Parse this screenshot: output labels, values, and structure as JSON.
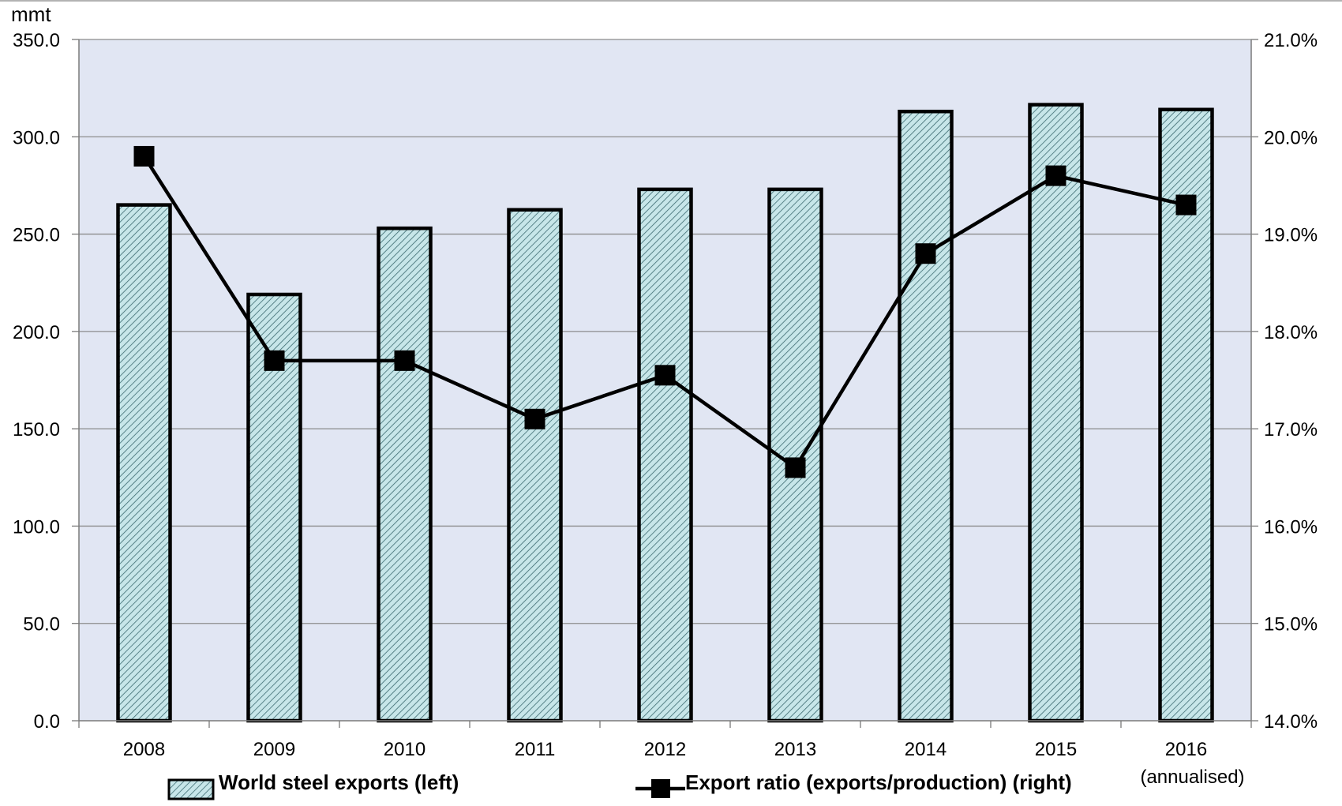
{
  "chart_data": {
    "type": "bar",
    "y_unit_label": "mmt",
    "categories": [
      "2008",
      "2009",
      "2010",
      "2011",
      "2012",
      "2013",
      "2014",
      "2015",
      "2016"
    ],
    "category_sublabels": [
      "",
      "",
      "",
      "",
      "",
      "",
      "",
      "",
      "(annualised)"
    ],
    "series": [
      {
        "name": "World steel exports (left)",
        "type": "bar",
        "axis": "left",
        "values": [
          265.0,
          219.0,
          253.0,
          262.5,
          273.0,
          273.0,
          313.0,
          316.5,
          314.0
        ],
        "color": "#bfe3e6",
        "pattern": "diagonal-hatch"
      },
      {
        "name": "Export ratio (exports/production) (right)",
        "type": "line",
        "axis": "right",
        "values": [
          19.8,
          17.7,
          17.7,
          17.1,
          17.55,
          16.6,
          18.8,
          19.6,
          19.3
        ],
        "unit": "%",
        "color": "#000000",
        "marker": "square"
      }
    ],
    "y_left": {
      "min": 0,
      "max": 350,
      "step": 50,
      "ticks": [
        "0.0",
        "50.0",
        "100.0",
        "150.0",
        "200.0",
        "250.0",
        "300.0",
        "350.0"
      ]
    },
    "y_right": {
      "min": 14,
      "max": 21,
      "step": 1,
      "ticks": [
        "14.0%",
        "15.0%",
        "16.0%",
        "17.0%",
        "18.0%",
        "19.0%",
        "20.0%",
        "21.0%"
      ]
    },
    "grid": true,
    "legend_position": "bottom",
    "plot_background": "#e1e6f3"
  }
}
